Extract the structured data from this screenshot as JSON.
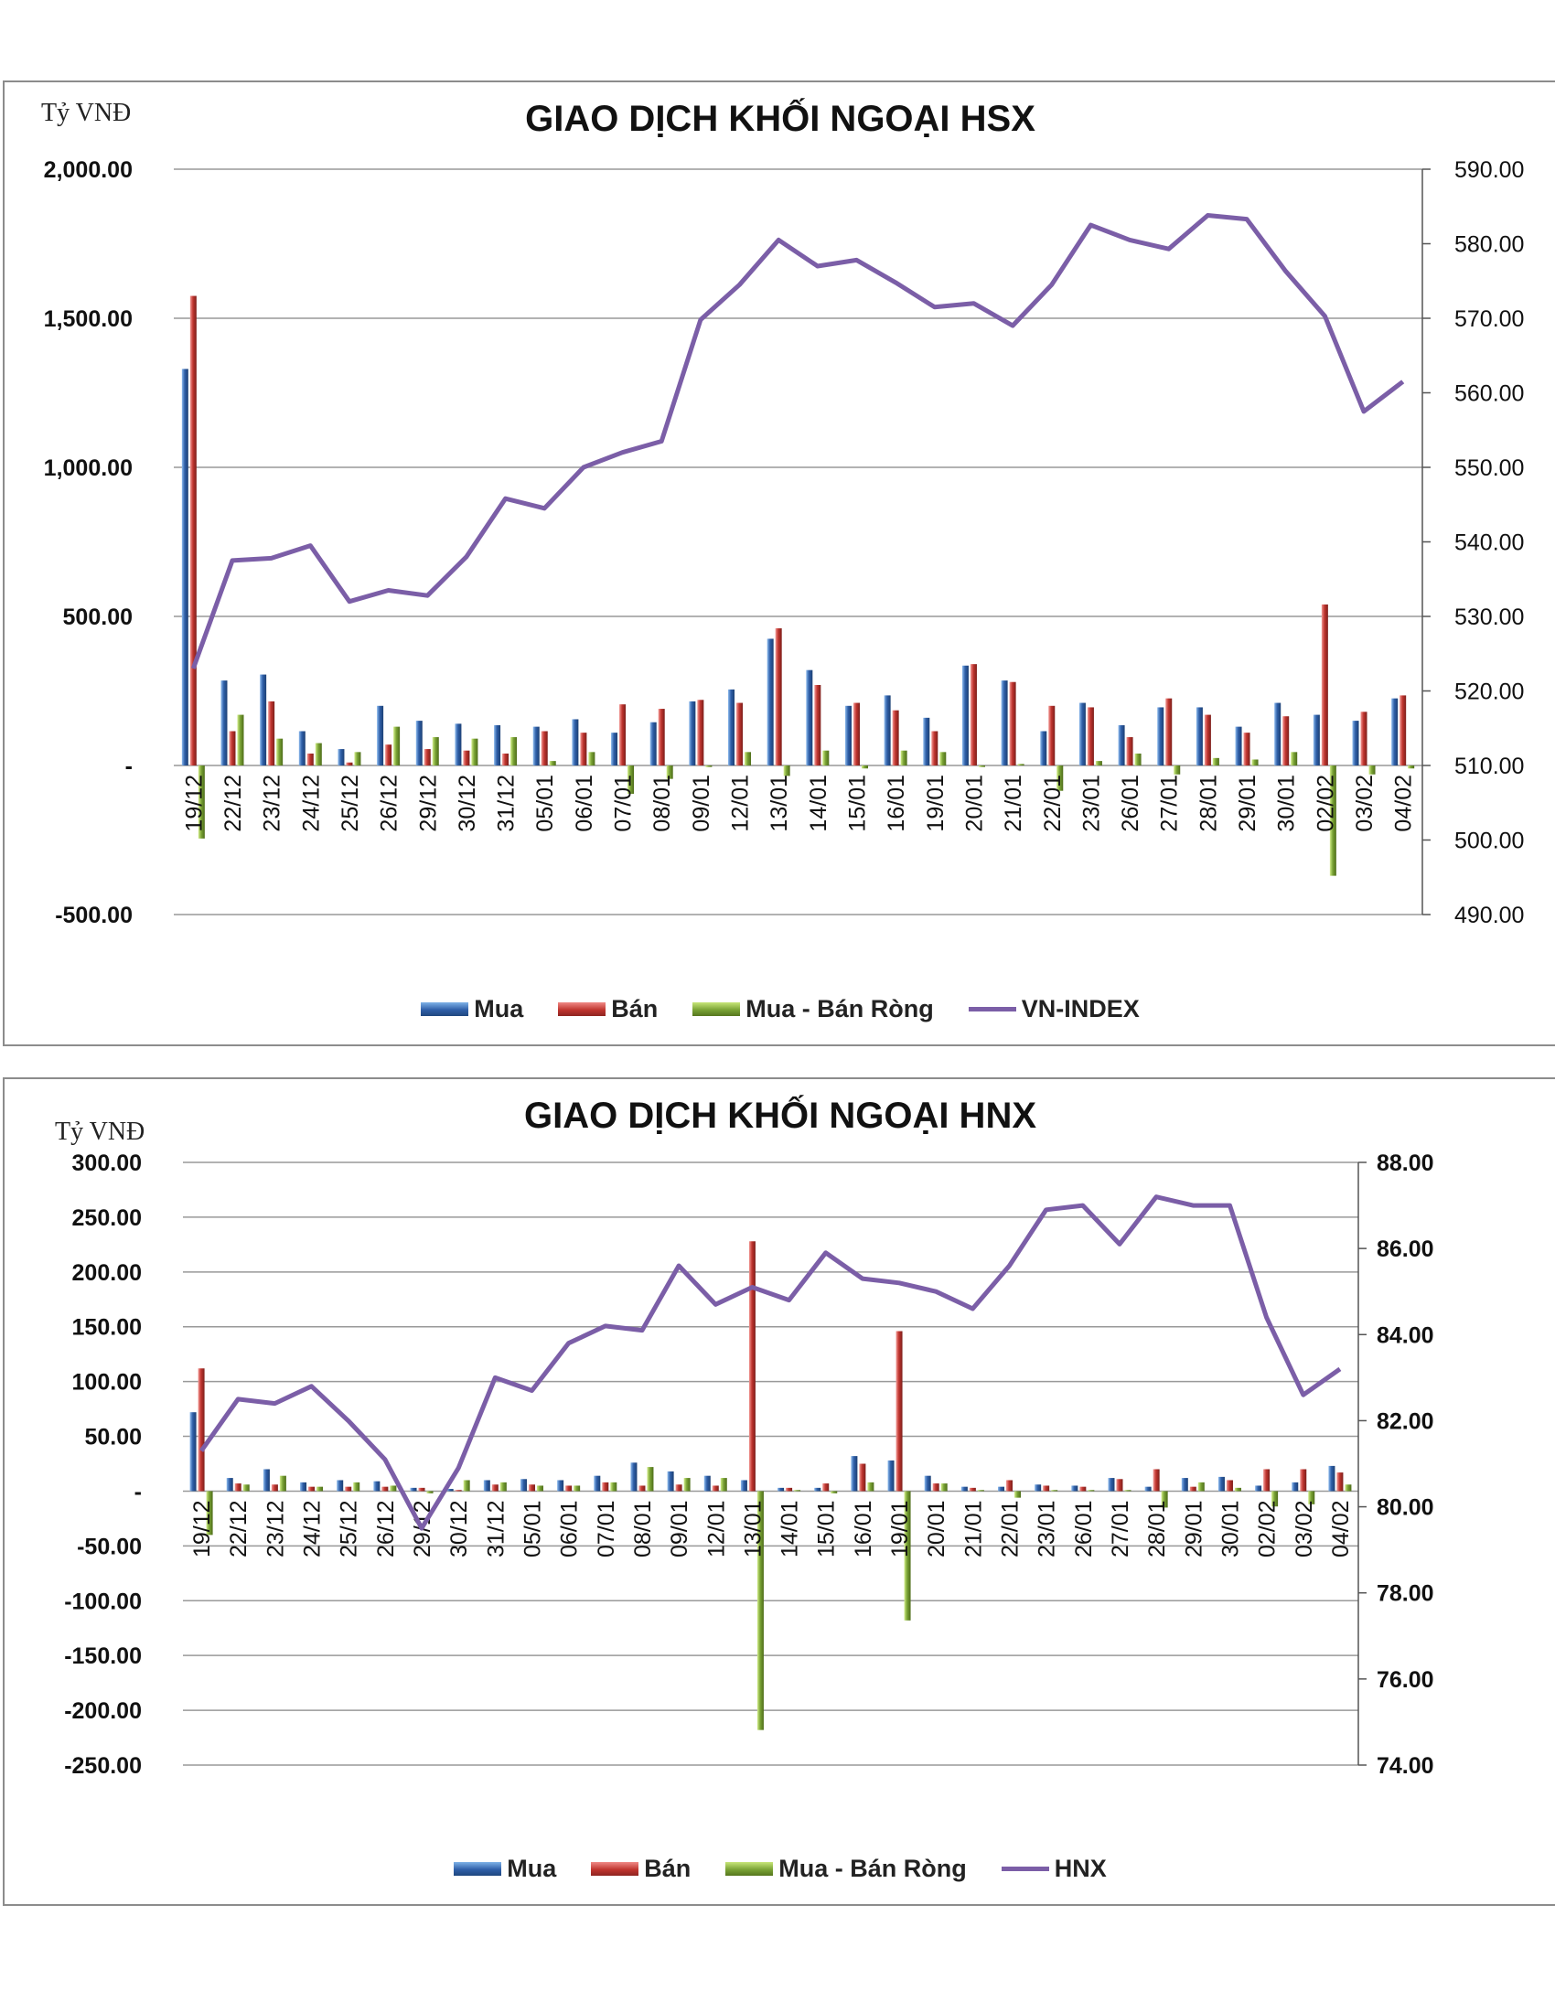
{
  "charts": [
    {
      "title": "GIAO DỊCH KHỐI NGOẠI HSX",
      "unit": "Tỷ VNĐ",
      "legend": {
        "mua": "Mua",
        "ban": "Bán",
        "rong": "Mua - Bán Ròng",
        "line": "VN-INDEX"
      }
    },
    {
      "title": "GIAO DỊCH KHỐI NGOẠI HNX",
      "unit": "Tỷ VNĐ",
      "legend": {
        "mua": "Mua",
        "ban": "Bán",
        "rong": "Mua - Bán Ròng",
        "line": "HNX"
      }
    }
  ],
  "colors": {
    "mua": "#2f5fa8",
    "ban": "#c0352f",
    "rong": "#7aa335",
    "line": "#7b5ea7",
    "grid": "#999999"
  },
  "chart_data": [
    {
      "type": "bar",
      "title": "GIAO DỊCH KHỐI NGOẠI HSX",
      "ylabel": "Tỷ VNĐ",
      "ylim": [
        -500,
        2000
      ],
      "y_ticks": [
        -500,
        0,
        500,
        1000,
        1500,
        2000
      ],
      "y_tick_labels": [
        "-500.00",
        "-",
        "500.00",
        "1,000.00",
        "1,500.00",
        "2,000.00"
      ],
      "y2lim": [
        490,
        590
      ],
      "y2_ticks": [
        490,
        500,
        510,
        520,
        530,
        540,
        550,
        560,
        570,
        580,
        590
      ],
      "y2_tick_labels": [
        "490.00",
        "500.00",
        "510.00",
        "520.00",
        "530.00",
        "540.00",
        "550.00",
        "560.00",
        "570.00",
        "580.00",
        "590.00"
      ],
      "grid": true,
      "legend_position": "bottom",
      "categories": [
        "19/12",
        "22/12",
        "23/12",
        "24/12",
        "25/12",
        "26/12",
        "29/12",
        "30/12",
        "31/12",
        "05/01",
        "06/01",
        "07/01",
        "08/01",
        "09/01",
        "12/01",
        "13/01",
        "14/01",
        "15/01",
        "16/01",
        "19/01",
        "20/01",
        "21/01",
        "22/01",
        "23/01",
        "26/01",
        "27/01",
        "28/01",
        "29/01",
        "30/01",
        "02/02",
        "03/02",
        "04/02"
      ],
      "series": [
        {
          "name": "Mua",
          "type": "bar",
          "values": [
            1330,
            285,
            305,
            115,
            55,
            200,
            150,
            140,
            135,
            130,
            155,
            110,
            145,
            215,
            255,
            425,
            320,
            200,
            235,
            160,
            335,
            285,
            115,
            210,
            135,
            195,
            195,
            130,
            210,
            170,
            150,
            225
          ]
        },
        {
          "name": "Bán",
          "type": "bar",
          "values": [
            1575,
            115,
            215,
            40,
            10,
            70,
            55,
            50,
            40,
            115,
            110,
            205,
            190,
            220,
            210,
            460,
            270,
            210,
            185,
            115,
            340,
            280,
            200,
            195,
            95,
            225,
            170,
            110,
            165,
            540,
            180,
            235
          ]
        },
        {
          "name": "Mua - Bán Ròng",
          "type": "bar",
          "values": [
            -245,
            170,
            90,
            75,
            45,
            130,
            95,
            90,
            95,
            15,
            45,
            -95,
            -45,
            -5,
            45,
            -35,
            50,
            -10,
            50,
            45,
            -5,
            5,
            -85,
            15,
            40,
            -30,
            25,
            20,
            45,
            -370,
            -30,
            -10
          ]
        },
        {
          "name": "VN-INDEX",
          "type": "line",
          "axis": "right",
          "values": [
            523,
            537.5,
            537.8,
            539.5,
            532,
            533.5,
            532.8,
            538,
            545.8,
            544.5,
            550,
            552,
            553.5,
            569.8,
            574.5,
            580.5,
            577,
            577.8,
            574.8,
            571.5,
            572,
            569,
            574.5,
            582.5,
            580.5,
            579.3,
            583.8,
            583.3,
            576.3,
            570.3,
            557.5,
            561.5
          ]
        }
      ]
    },
    {
      "type": "bar",
      "title": "GIAO DỊCH KHỐI NGOẠI HNX",
      "ylabel": "Tỷ VNĐ",
      "ylim": [
        -250,
        300
      ],
      "y_ticks": [
        -250,
        -200,
        -150,
        -100,
        -50,
        0,
        50,
        100,
        150,
        200,
        250,
        300
      ],
      "y_tick_labels": [
        "-250.00",
        "-200.00",
        "-150.00",
        "-100.00",
        "-50.00",
        "-",
        "50.00",
        "100.00",
        "150.00",
        "200.00",
        "250.00",
        "300.00"
      ],
      "y2lim": [
        74,
        88
      ],
      "y2_ticks": [
        74,
        76,
        78,
        80,
        82,
        84,
        86,
        88
      ],
      "y2_tick_labels": [
        "74.00",
        "76.00",
        "78.00",
        "80.00",
        "82.00",
        "84.00",
        "86.00",
        "88.00"
      ],
      "grid": true,
      "legend_position": "bottom",
      "categories": [
        "19/12",
        "22/12",
        "23/12",
        "24/12",
        "25/12",
        "26/12",
        "29/12",
        "30/12",
        "31/12",
        "05/01",
        "06/01",
        "07/01",
        "08/01",
        "09/01",
        "12/01",
        "13/01",
        "14/01",
        "15/01",
        "16/01",
        "19/01",
        "20/01",
        "21/01",
        "22/01",
        "23/01",
        "26/01",
        "27/01",
        "28/01",
        "29/01",
        "30/01",
        "02/02",
        "03/02",
        "04/02"
      ],
      "series": [
        {
          "name": "Mua",
          "type": "bar",
          "values": [
            72,
            12,
            20,
            8,
            10,
            9,
            3,
            2,
            10,
            11,
            10,
            14,
            26,
            18,
            14,
            10,
            3,
            3,
            32,
            28,
            14,
            4,
            4,
            6,
            5,
            12,
            4,
            12,
            13,
            5,
            8,
            23
          ]
        },
        {
          "name": "Bán",
          "type": "bar",
          "values": [
            112,
            7,
            6,
            4,
            4,
            4,
            3,
            1,
            6,
            6,
            5,
            8,
            5,
            6,
            5,
            228,
            3,
            7,
            25,
            146,
            7,
            3,
            10,
            5,
            4,
            11,
            20,
            4,
            10,
            20,
            20,
            17
          ]
        },
        {
          "name": "Mua - Bán Ròng",
          "type": "bar",
          "values": [
            -40,
            6,
            14,
            4,
            8,
            5,
            -2,
            10,
            8,
            5,
            5,
            8,
            22,
            12,
            12,
            -218,
            1,
            -2,
            8,
            -118,
            7,
            1,
            -6,
            1,
            1,
            1,
            -15,
            8,
            3,
            -14,
            -12,
            6
          ]
        },
        {
          "name": "HNX",
          "type": "line",
          "axis": "right",
          "values": [
            81.3,
            82.5,
            82.4,
            82.8,
            82,
            81.1,
            79.5,
            80.9,
            83,
            82.7,
            83.8,
            84.2,
            84.1,
            85.6,
            84.7,
            85.1,
            84.8,
            85.9,
            85.3,
            85.2,
            85,
            84.6,
            85.6,
            86.9,
            87,
            86.1,
            87.2,
            87,
            87,
            84.4,
            82.6,
            83.2
          ]
        }
      ]
    }
  ]
}
